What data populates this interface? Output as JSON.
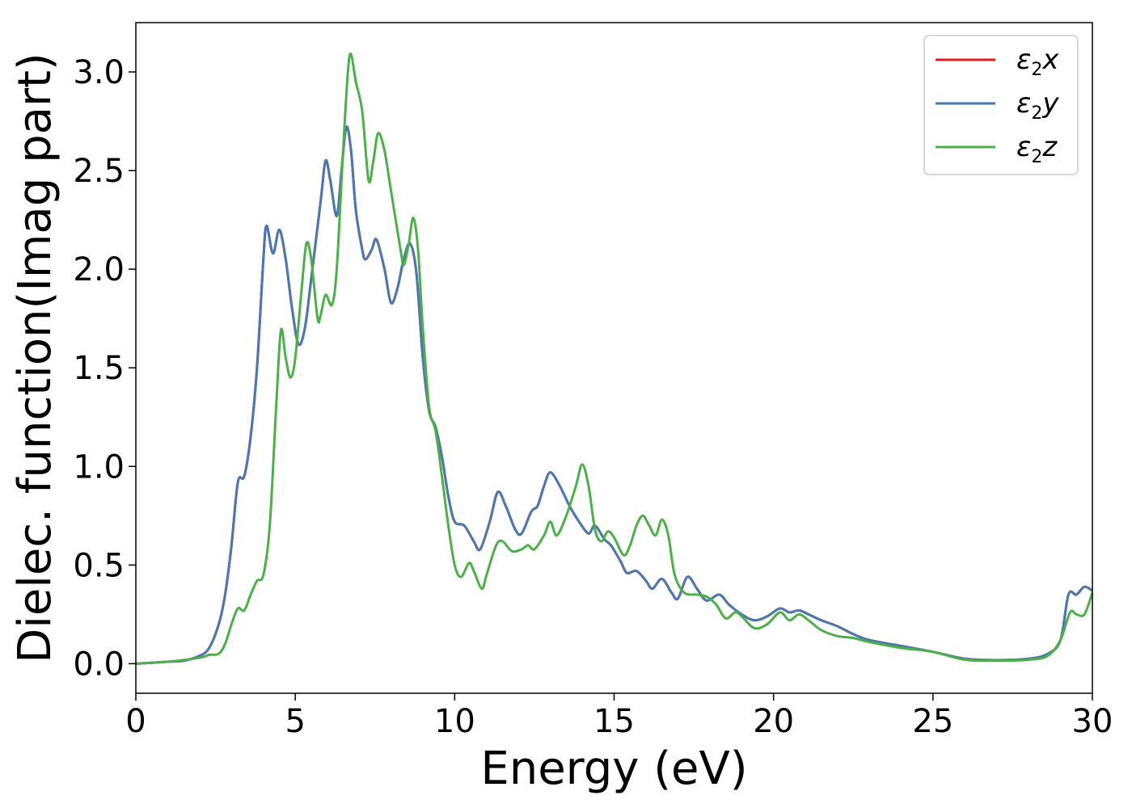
{
  "chart_data": {
    "type": "line",
    "xlabel": "Energy (eV)",
    "ylabel": "Dielec. function(Imag part)",
    "xlim": [
      0,
      30
    ],
    "ylim": [
      -0.15,
      3.25
    ],
    "xticks": [
      "0",
      "5",
      "10",
      "15",
      "20",
      "25",
      "30"
    ],
    "yticks": [
      "0.0",
      "0.5",
      "1.0",
      "1.5",
      "2.0",
      "2.5",
      "3.0"
    ],
    "grid": false,
    "legend_position": "top-right",
    "series": [
      {
        "name": "ε2x",
        "symbol": "ε",
        "sub": "2",
        "suffix": "x",
        "color": "#e41a1c",
        "points": [
          [
            0,
            0
          ],
          [
            1,
            0.01
          ],
          [
            1.5,
            0.015
          ],
          [
            2,
            0.04
          ],
          [
            2.3,
            0.08
          ],
          [
            2.6,
            0.2
          ],
          [
            2.8,
            0.35
          ],
          [
            3,
            0.6
          ],
          [
            3.2,
            0.92
          ],
          [
            3.4,
            0.95
          ],
          [
            3.6,
            1.15
          ],
          [
            3.8,
            1.5
          ],
          [
            4,
            2.05
          ],
          [
            4.1,
            2.22
          ],
          [
            4.3,
            2.08
          ],
          [
            4.5,
            2.2
          ],
          [
            4.7,
            2.05
          ],
          [
            4.9,
            1.8
          ],
          [
            5.1,
            1.62
          ],
          [
            5.3,
            1.7
          ],
          [
            5.5,
            1.95
          ],
          [
            5.8,
            2.35
          ],
          [
            5.95,
            2.55
          ],
          [
            6.1,
            2.45
          ],
          [
            6.3,
            2.27
          ],
          [
            6.45,
            2.5
          ],
          [
            6.6,
            2.72
          ],
          [
            6.75,
            2.6
          ],
          [
            6.9,
            2.3
          ],
          [
            7.1,
            2.1
          ],
          [
            7.2,
            2.05
          ],
          [
            7.4,
            2.1
          ],
          [
            7.55,
            2.15
          ],
          [
            7.8,
            2.0
          ],
          [
            8.0,
            1.83
          ],
          [
            8.2,
            1.9
          ],
          [
            8.4,
            2.05
          ],
          [
            8.6,
            2.13
          ],
          [
            8.8,
            1.98
          ],
          [
            9.0,
            1.55
          ],
          [
            9.2,
            1.28
          ],
          [
            9.4,
            1.2
          ],
          [
            9.6,
            1.05
          ],
          [
            9.8,
            0.85
          ],
          [
            10,
            0.72
          ],
          [
            10.3,
            0.7
          ],
          [
            10.6,
            0.62
          ],
          [
            10.8,
            0.58
          ],
          [
            11.1,
            0.72
          ],
          [
            11.35,
            0.87
          ],
          [
            11.6,
            0.8
          ],
          [
            11.9,
            0.68
          ],
          [
            12.1,
            0.66
          ],
          [
            12.4,
            0.77
          ],
          [
            12.6,
            0.8
          ],
          [
            12.8,
            0.9
          ],
          [
            13.0,
            0.97
          ],
          [
            13.3,
            0.9
          ],
          [
            13.6,
            0.8
          ],
          [
            13.9,
            0.72
          ],
          [
            14.2,
            0.66
          ],
          [
            14.4,
            0.7
          ],
          [
            14.7,
            0.63
          ],
          [
            14.9,
            0.6
          ],
          [
            15.2,
            0.52
          ],
          [
            15.4,
            0.46
          ],
          [
            15.7,
            0.47
          ],
          [
            16.0,
            0.42
          ],
          [
            16.2,
            0.38
          ],
          [
            16.5,
            0.43
          ],
          [
            16.8,
            0.36
          ],
          [
            17.0,
            0.33
          ],
          [
            17.3,
            0.44
          ],
          [
            17.6,
            0.38
          ],
          [
            17.9,
            0.32
          ],
          [
            18.3,
            0.35
          ],
          [
            18.6,
            0.3
          ],
          [
            19.0,
            0.25
          ],
          [
            19.4,
            0.22
          ],
          [
            19.8,
            0.24
          ],
          [
            20.2,
            0.28
          ],
          [
            20.5,
            0.26
          ],
          [
            20.8,
            0.27
          ],
          [
            21.1,
            0.25
          ],
          [
            21.5,
            0.22
          ],
          [
            22.0,
            0.19
          ],
          [
            22.5,
            0.15
          ],
          [
            23,
            0.12
          ],
          [
            24,
            0.09
          ],
          [
            25,
            0.06
          ],
          [
            26,
            0.025
          ],
          [
            27,
            0.018
          ],
          [
            28,
            0.025
          ],
          [
            28.6,
            0.05
          ],
          [
            29,
            0.12
          ],
          [
            29.25,
            0.35
          ],
          [
            29.5,
            0.35
          ],
          [
            29.75,
            0.39
          ],
          [
            30,
            0.37
          ]
        ]
      },
      {
        "name": "ε2y",
        "symbol": "ε",
        "sub": "2",
        "suffix": "y",
        "color": "#4a79b0",
        "points": [
          [
            0,
            0
          ],
          [
            1,
            0.01
          ],
          [
            1.5,
            0.015
          ],
          [
            2,
            0.04
          ],
          [
            2.3,
            0.08
          ],
          [
            2.6,
            0.2
          ],
          [
            2.8,
            0.35
          ],
          [
            3,
            0.6
          ],
          [
            3.2,
            0.92
          ],
          [
            3.4,
            0.95
          ],
          [
            3.6,
            1.15
          ],
          [
            3.8,
            1.5
          ],
          [
            4,
            2.05
          ],
          [
            4.1,
            2.22
          ],
          [
            4.3,
            2.08
          ],
          [
            4.5,
            2.2
          ],
          [
            4.7,
            2.05
          ],
          [
            4.9,
            1.8
          ],
          [
            5.1,
            1.62
          ],
          [
            5.3,
            1.7
          ],
          [
            5.5,
            1.95
          ],
          [
            5.8,
            2.35
          ],
          [
            5.95,
            2.55
          ],
          [
            6.1,
            2.45
          ],
          [
            6.3,
            2.27
          ],
          [
            6.45,
            2.5
          ],
          [
            6.6,
            2.72
          ],
          [
            6.75,
            2.6
          ],
          [
            6.9,
            2.3
          ],
          [
            7.1,
            2.1
          ],
          [
            7.2,
            2.05
          ],
          [
            7.4,
            2.1
          ],
          [
            7.55,
            2.15
          ],
          [
            7.8,
            2.0
          ],
          [
            8.0,
            1.83
          ],
          [
            8.2,
            1.9
          ],
          [
            8.4,
            2.05
          ],
          [
            8.6,
            2.13
          ],
          [
            8.8,
            1.98
          ],
          [
            9.0,
            1.55
          ],
          [
            9.2,
            1.28
          ],
          [
            9.4,
            1.2
          ],
          [
            9.6,
            1.05
          ],
          [
            9.8,
            0.85
          ],
          [
            10,
            0.72
          ],
          [
            10.3,
            0.7
          ],
          [
            10.6,
            0.62
          ],
          [
            10.8,
            0.58
          ],
          [
            11.1,
            0.72
          ],
          [
            11.35,
            0.87
          ],
          [
            11.6,
            0.8
          ],
          [
            11.9,
            0.68
          ],
          [
            12.1,
            0.66
          ],
          [
            12.4,
            0.77
          ],
          [
            12.6,
            0.8
          ],
          [
            12.8,
            0.9
          ],
          [
            13.0,
            0.97
          ],
          [
            13.3,
            0.9
          ],
          [
            13.6,
            0.8
          ],
          [
            13.9,
            0.72
          ],
          [
            14.2,
            0.66
          ],
          [
            14.4,
            0.7
          ],
          [
            14.7,
            0.63
          ],
          [
            14.9,
            0.6
          ],
          [
            15.2,
            0.52
          ],
          [
            15.4,
            0.46
          ],
          [
            15.7,
            0.47
          ],
          [
            16.0,
            0.42
          ],
          [
            16.2,
            0.38
          ],
          [
            16.5,
            0.43
          ],
          [
            16.8,
            0.36
          ],
          [
            17.0,
            0.33
          ],
          [
            17.3,
            0.44
          ],
          [
            17.6,
            0.38
          ],
          [
            17.9,
            0.32
          ],
          [
            18.3,
            0.35
          ],
          [
            18.6,
            0.3
          ],
          [
            19.0,
            0.25
          ],
          [
            19.4,
            0.22
          ],
          [
            19.8,
            0.24
          ],
          [
            20.2,
            0.28
          ],
          [
            20.5,
            0.26
          ],
          [
            20.8,
            0.27
          ],
          [
            21.1,
            0.25
          ],
          [
            21.5,
            0.22
          ],
          [
            22.0,
            0.19
          ],
          [
            22.5,
            0.15
          ],
          [
            23,
            0.12
          ],
          [
            24,
            0.09
          ],
          [
            25,
            0.06
          ],
          [
            26,
            0.025
          ],
          [
            27,
            0.018
          ],
          [
            28,
            0.025
          ],
          [
            28.6,
            0.05
          ],
          [
            29,
            0.12
          ],
          [
            29.25,
            0.35
          ],
          [
            29.5,
            0.35
          ],
          [
            29.75,
            0.39
          ],
          [
            30,
            0.37
          ]
        ]
      },
      {
        "name": "ε2z",
        "symbol": "ε",
        "sub": "2",
        "suffix": "z",
        "color": "#4daf4a",
        "points": [
          [
            0,
            0
          ],
          [
            1,
            0.01
          ],
          [
            2,
            0.03
          ],
          [
            2.3,
            0.045
          ],
          [
            2.6,
            0.05
          ],
          [
            2.8,
            0.1
          ],
          [
            3.0,
            0.2
          ],
          [
            3.2,
            0.28
          ],
          [
            3.4,
            0.27
          ],
          [
            3.6,
            0.35
          ],
          [
            3.8,
            0.42
          ],
          [
            4.0,
            0.45
          ],
          [
            4.2,
            0.7
          ],
          [
            4.4,
            1.3
          ],
          [
            4.55,
            1.69
          ],
          [
            4.7,
            1.55
          ],
          [
            4.85,
            1.45
          ],
          [
            5.0,
            1.55
          ],
          [
            5.2,
            1.9
          ],
          [
            5.35,
            2.13
          ],
          [
            5.5,
            2.05
          ],
          [
            5.7,
            1.75
          ],
          [
            5.8,
            1.77
          ],
          [
            5.95,
            1.87
          ],
          [
            6.15,
            1.82
          ],
          [
            6.3,
            2.0
          ],
          [
            6.5,
            2.6
          ],
          [
            6.65,
            3.0
          ],
          [
            6.75,
            3.09
          ],
          [
            6.9,
            2.95
          ],
          [
            7.1,
            2.8
          ],
          [
            7.3,
            2.45
          ],
          [
            7.45,
            2.55
          ],
          [
            7.6,
            2.69
          ],
          [
            7.8,
            2.6
          ],
          [
            8.0,
            2.4
          ],
          [
            8.3,
            2.1
          ],
          [
            8.4,
            2.02
          ],
          [
            8.55,
            2.12
          ],
          [
            8.7,
            2.26
          ],
          [
            8.85,
            2.1
          ],
          [
            9.0,
            1.7
          ],
          [
            9.2,
            1.3
          ],
          [
            9.4,
            1.18
          ],
          [
            9.6,
            0.95
          ],
          [
            9.8,
            0.7
          ],
          [
            10.0,
            0.5
          ],
          [
            10.2,
            0.44
          ],
          [
            10.45,
            0.51
          ],
          [
            10.6,
            0.47
          ],
          [
            10.85,
            0.38
          ],
          [
            11.0,
            0.45
          ],
          [
            11.3,
            0.6
          ],
          [
            11.5,
            0.62
          ],
          [
            11.8,
            0.57
          ],
          [
            12.1,
            0.58
          ],
          [
            12.3,
            0.6
          ],
          [
            12.5,
            0.58
          ],
          [
            12.8,
            0.65
          ],
          [
            13.0,
            0.72
          ],
          [
            13.2,
            0.65
          ],
          [
            13.5,
            0.75
          ],
          [
            13.8,
            0.9
          ],
          [
            14.0,
            1.01
          ],
          [
            14.2,
            0.9
          ],
          [
            14.4,
            0.68
          ],
          [
            14.6,
            0.62
          ],
          [
            14.8,
            0.67
          ],
          [
            15.0,
            0.64
          ],
          [
            15.3,
            0.55
          ],
          [
            15.5,
            0.6
          ],
          [
            15.7,
            0.7
          ],
          [
            15.9,
            0.75
          ],
          [
            16.1,
            0.7
          ],
          [
            16.3,
            0.65
          ],
          [
            16.5,
            0.73
          ],
          [
            16.7,
            0.65
          ],
          [
            16.9,
            0.45
          ],
          [
            17.2,
            0.36
          ],
          [
            17.6,
            0.35
          ],
          [
            17.9,
            0.34
          ],
          [
            18.2,
            0.3
          ],
          [
            18.5,
            0.23
          ],
          [
            18.8,
            0.26
          ],
          [
            19.0,
            0.24
          ],
          [
            19.4,
            0.18
          ],
          [
            19.8,
            0.2
          ],
          [
            20.2,
            0.26
          ],
          [
            20.5,
            0.22
          ],
          [
            20.8,
            0.25
          ],
          [
            21.1,
            0.22
          ],
          [
            21.5,
            0.17
          ],
          [
            22.0,
            0.14
          ],
          [
            22.5,
            0.13
          ],
          [
            23,
            0.11
          ],
          [
            24,
            0.08
          ],
          [
            25,
            0.06
          ],
          [
            26,
            0.02
          ],
          [
            27,
            0.015
          ],
          [
            28,
            0.02
          ],
          [
            28.6,
            0.04
          ],
          [
            29,
            0.12
          ],
          [
            29.3,
            0.26
          ],
          [
            29.5,
            0.25
          ],
          [
            29.75,
            0.25
          ],
          [
            30,
            0.36
          ]
        ]
      }
    ]
  }
}
